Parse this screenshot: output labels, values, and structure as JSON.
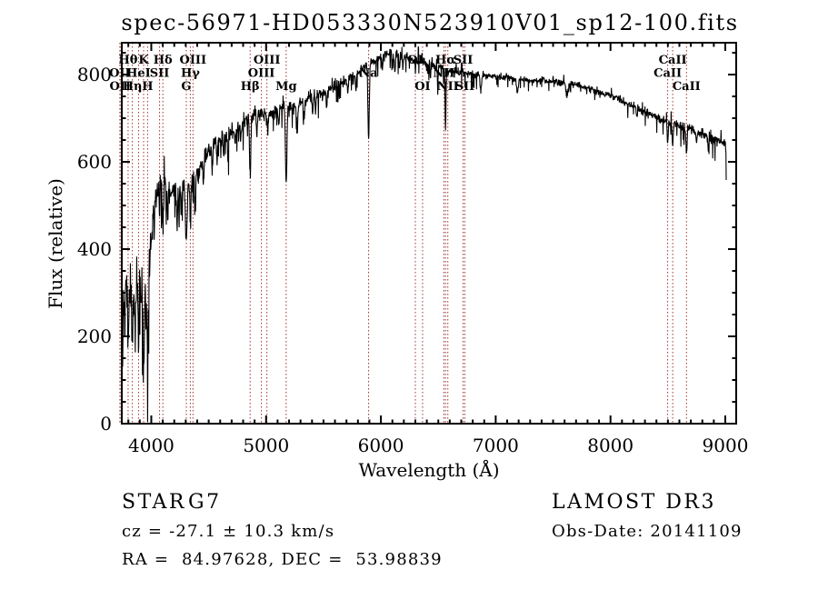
{
  "title": "spec-56971-HD053330N523910V01_sp12-100.fits",
  "annotations": {
    "object_type": "STAR",
    "subclass": "G7",
    "cz_line": "cz = -27.1 ± 10.3 km/s",
    "radec_line": "RA =  84.97628, DEC =  53.98839",
    "survey": "LAMOST DR3",
    "obs_date": "Obs-Date: 20141109"
  },
  "chart_data": {
    "type": "line",
    "title": "spec-56971-HD053330N523910V01_sp12-100.fits",
    "xlabel": "Wavelength (Å)",
    "ylabel": "Flux (relative)",
    "xlim": [
      3743,
      9095
    ],
    "ylim": [
      0,
      873
    ],
    "x_ticks": [
      4000,
      5000,
      6000,
      7000,
      8000,
      9000
    ],
    "y_ticks": [
      0,
      200,
      400,
      600,
      800
    ],
    "x_minor_step": 100,
    "y_minor_step": 50,
    "grid": false,
    "legend": "none",
    "line_color": "#000000",
    "marker_line_color": "#a03232",
    "spectral_lines": [
      {
        "name": "OII",
        "wavelength": 3726,
        "row": 2
      },
      {
        "name": "OII",
        "wavelength": 3729,
        "row": 3
      },
      {
        "name": "Hθ",
        "wavelength": 3798,
        "row": 1
      },
      {
        "name": "Hη",
        "wavelength": 3835,
        "row": 3
      },
      {
        "name": "HeI",
        "wavelength": 3889,
        "row": 2
      },
      {
        "name": "K",
        "wavelength": 3933,
        "row": 1
      },
      {
        "name": "H",
        "wavelength": 3968,
        "row": 3
      },
      {
        "name": "SII",
        "wavelength": 4072,
        "row": 2
      },
      {
        "name": "Hδ",
        "wavelength": 4101,
        "row": 1
      },
      {
        "name": "G",
        "wavelength": 4305,
        "row": 3
      },
      {
        "name": "Hγ",
        "wavelength": 4340,
        "row": 2
      },
      {
        "name": "OIII",
        "wavelength": 4363,
        "row": 1
      },
      {
        "name": "Hβ",
        "wavelength": 4861,
        "row": 3
      },
      {
        "name": "OIII",
        "wavelength": 4959,
        "row": 2
      },
      {
        "name": "OIII",
        "wavelength": 5007,
        "row": 1
      },
      {
        "name": "Mg",
        "wavelength": 5175,
        "row": 3
      },
      {
        "name": "Na",
        "wavelength": 5893,
        "row": 2
      },
      {
        "name": "OI",
        "wavelength": 6300,
        "row": 1
      },
      {
        "name": "OI",
        "wavelength": 6363,
        "row": 3
      },
      {
        "name": "NII",
        "wavelength": 6548,
        "row": 2
      },
      {
        "name": "Hα",
        "wavelength": 6563,
        "row": 1
      },
      {
        "name": "NII",
        "wavelength": 6583,
        "row": 3
      },
      {
        "name": "SII",
        "wavelength": 6716,
        "row": 1
      },
      {
        "name": "SII",
        "wavelength": 6731,
        "row": 3
      },
      {
        "name": "CaII",
        "wavelength": 8498,
        "row": 2
      },
      {
        "name": "CaII",
        "wavelength": 8542,
        "row": 1
      },
      {
        "name": "CaII",
        "wavelength": 8662,
        "row": 3
      }
    ],
    "continuum": [
      [
        3743,
        12
      ],
      [
        3744.5,
        340
      ],
      [
        3760,
        300
      ],
      [
        3780,
        330
      ],
      [
        3800,
        310
      ],
      [
        3825,
        330
      ],
      [
        3850,
        300
      ],
      [
        3875,
        330
      ],
      [
        3900,
        340
      ],
      [
        3925,
        330
      ],
      [
        3950,
        310
      ],
      [
        3975,
        330
      ],
      [
        3995,
        400
      ],
      [
        4020,
        500
      ],
      [
        4060,
        545
      ],
      [
        4100,
        565
      ],
      [
        4140,
        535
      ],
      [
        4180,
        528
      ],
      [
        4220,
        545
      ],
      [
        4260,
        545
      ],
      [
        4300,
        552
      ],
      [
        4340,
        562
      ],
      [
        4380,
        572
      ],
      [
        4420,
        588
      ],
      [
        4460,
        608
      ],
      [
        4500,
        628
      ],
      [
        4550,
        642
      ],
      [
        4600,
        652
      ],
      [
        4700,
        665
      ],
      [
        4800,
        688
      ],
      [
        4860,
        700
      ],
      [
        4900,
        706
      ],
      [
        4950,
        710
      ],
      [
        5000,
        710
      ],
      [
        5050,
        712
      ],
      [
        5100,
        720
      ],
      [
        5150,
        728
      ],
      [
        5200,
        726
      ],
      [
        5250,
        730
      ],
      [
        5300,
        736
      ],
      [
        5350,
        742
      ],
      [
        5400,
        750
      ],
      [
        5450,
        755
      ],
      [
        5500,
        760
      ],
      [
        5600,
        772
      ],
      [
        5700,
        788
      ],
      [
        5800,
        805
      ],
      [
        5850,
        815
      ],
      [
        5900,
        825
      ],
      [
        5950,
        832
      ],
      [
        6000,
        840
      ],
      [
        6050,
        845
      ],
      [
        6100,
        846
      ],
      [
        6150,
        845
      ],
      [
        6200,
        841
      ],
      [
        6250,
        838
      ],
      [
        6300,
        834
      ],
      [
        6350,
        830
      ],
      [
        6400,
        825
      ],
      [
        6450,
        821
      ],
      [
        6500,
        817
      ],
      [
        6550,
        813
      ],
      [
        6600,
        808
      ],
      [
        6650,
        806
      ],
      [
        6700,
        804
      ],
      [
        6750,
        802
      ],
      [
        6800,
        801
      ],
      [
        6850,
        800
      ],
      [
        6900,
        799
      ],
      [
        6950,
        797
      ],
      [
        7000,
        795
      ],
      [
        7100,
        793
      ],
      [
        7200,
        790
      ],
      [
        7300,
        788
      ],
      [
        7400,
        786
      ],
      [
        7500,
        784
      ],
      [
        7600,
        782
      ],
      [
        7700,
        777
      ],
      [
        7800,
        769
      ],
      [
        7900,
        760
      ],
      [
        8000,
        751
      ],
      [
        8100,
        740
      ],
      [
        8200,
        727
      ],
      [
        8300,
        714
      ],
      [
        8400,
        701
      ],
      [
        8500,
        692
      ],
      [
        8600,
        684
      ],
      [
        8700,
        673
      ],
      [
        8800,
        662
      ],
      [
        8900,
        651
      ],
      [
        9000,
        641
      ],
      [
        9005,
        636
      ],
      [
        9008,
        560
      ]
    ],
    "noise_amplitude": [
      [
        3743,
        58
      ],
      [
        3950,
        55
      ],
      [
        4000,
        38
      ],
      [
        4150,
        26
      ],
      [
        4300,
        24
      ],
      [
        4500,
        21
      ],
      [
        4700,
        19
      ],
      [
        5000,
        16
      ],
      [
        5300,
        14
      ],
      [
        5600,
        13
      ],
      [
        5900,
        12
      ],
      [
        6200,
        12
      ],
      [
        6500,
        10
      ],
      [
        6800,
        9
      ],
      [
        7200,
        8
      ],
      [
        7600,
        8
      ],
      [
        8000,
        9
      ],
      [
        8300,
        10
      ],
      [
        8600,
        12
      ],
      [
        8900,
        14
      ],
      [
        9008,
        15
      ]
    ],
    "absorption_dips": [
      [
        3750,
        150,
        3
      ],
      [
        3770,
        110,
        4
      ],
      [
        3798,
        120,
        5
      ],
      [
        3819,
        80,
        4
      ],
      [
        3835,
        130,
        5
      ],
      [
        3860,
        110,
        4
      ],
      [
        3889,
        150,
        5
      ],
      [
        3910,
        70,
        4
      ],
      [
        3933,
        180,
        6
      ],
      [
        3968,
        170,
        6
      ],
      [
        4026,
        70,
        4
      ],
      [
        4072,
        70,
        4
      ],
      [
        4101,
        120,
        5
      ],
      [
        4144,
        60,
        4
      ],
      [
        4226,
        90,
        4
      ],
      [
        4260,
        60,
        4
      ],
      [
        4305,
        120,
        8
      ],
      [
        4340,
        90,
        5
      ],
      [
        4383,
        80,
        4
      ],
      [
        4415,
        45,
        4
      ],
      [
        4455,
        55,
        4
      ],
      [
        4531,
        50,
        4
      ],
      [
        4571,
        50,
        4
      ],
      [
        4630,
        40,
        4
      ],
      [
        4668,
        55,
        4
      ],
      [
        4730,
        35,
        4
      ],
      [
        4780,
        40,
        4
      ],
      [
        4861,
        150,
        5
      ],
      [
        4920,
        45,
        4
      ],
      [
        5015,
        40,
        4
      ],
      [
        5110,
        40,
        4
      ],
      [
        5175,
        178,
        6
      ],
      [
        5270,
        70,
        5
      ],
      [
        5332,
        40,
        4
      ],
      [
        5406,
        40,
        4
      ],
      [
        5430,
        35,
        4
      ],
      [
        5528,
        40,
        4
      ],
      [
        5711,
        35,
        4
      ],
      [
        5782,
        40,
        4
      ],
      [
        5893,
        172,
        6
      ],
      [
        6013,
        35,
        3
      ],
      [
        6103,
        30,
        3
      ],
      [
        6122,
        45,
        4
      ],
      [
        6162,
        35,
        4
      ],
      [
        6191,
        30,
        3
      ],
      [
        6300,
        25,
        4
      ],
      [
        6431,
        30,
        3
      ],
      [
        6495,
        35,
        4
      ],
      [
        6563,
        140,
        4
      ],
      [
        6870,
        35,
        6
      ],
      [
        7190,
        30,
        7
      ],
      [
        7620,
        30,
        9
      ],
      [
        8230,
        25,
        5
      ],
      [
        8498,
        55,
        4
      ],
      [
        8542,
        50,
        5
      ],
      [
        8662,
        55,
        5
      ],
      [
        8750,
        25,
        4
      ],
      [
        8850,
        25,
        4
      ]
    ],
    "sample_step": 2.5,
    "noise_seed": 20141109
  }
}
